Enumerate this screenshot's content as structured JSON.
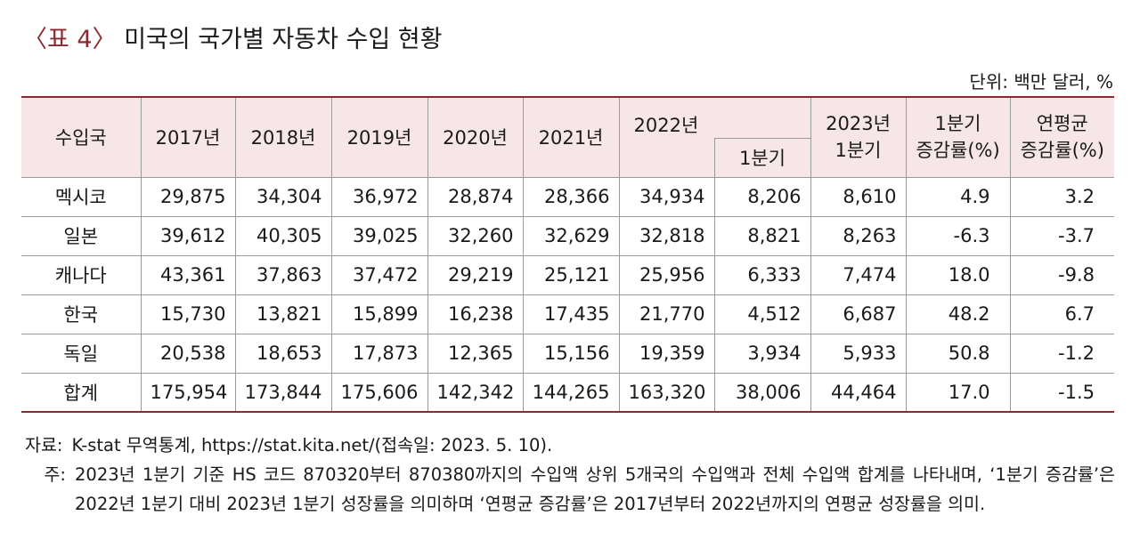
{
  "title": {
    "bracket_label": "〈표 4〉",
    "text": "미국의 국가별 자동차 수입 현황"
  },
  "unit_label": "단위: 백만 달러, %",
  "table": {
    "headers": {
      "country": "수입국",
      "y2017": "2017년",
      "y2018": "2018년",
      "y2019": "2019년",
      "y2020": "2020년",
      "y2021": "2021년",
      "y2022": "2022년",
      "y2022_q1": "1분기",
      "y2023_q1_line1": "2023년",
      "y2023_q1_line2": "1분기",
      "q1_growth_line1": "1분기",
      "q1_growth_line2": "증감률(%)",
      "avg_growth_line1": "연평균",
      "avg_growth_line2": "증감률(%)"
    },
    "rows": [
      {
        "country": "멕시코",
        "v2017": "29,875",
        "v2018": "34,304",
        "v2019": "36,972",
        "v2020": "28,874",
        "v2021": "28,366",
        "v2022": "34,934",
        "q1_2022": "8,206",
        "q1_2023": "8,610",
        "q1_growth": "4.9",
        "avg_growth": "3.2"
      },
      {
        "country": "일본",
        "v2017": "39,612",
        "v2018": "40,305",
        "v2019": "39,025",
        "v2020": "32,260",
        "v2021": "32,629",
        "v2022": "32,818",
        "q1_2022": "8,821",
        "q1_2023": "8,263",
        "q1_growth": "-6.3",
        "avg_growth": "-3.7"
      },
      {
        "country": "캐나다",
        "v2017": "43,361",
        "v2018": "37,863",
        "v2019": "37,472",
        "v2020": "29,219",
        "v2021": "25,121",
        "v2022": "25,956",
        "q1_2022": "6,333",
        "q1_2023": "7,474",
        "q1_growth": "18.0",
        "avg_growth": "-9.8"
      },
      {
        "country": "한국",
        "v2017": "15,730",
        "v2018": "13,821",
        "v2019": "15,899",
        "v2020": "16,238",
        "v2021": "17,435",
        "v2022": "21,770",
        "q1_2022": "4,512",
        "q1_2023": "6,687",
        "q1_growth": "48.2",
        "avg_growth": "6.7"
      },
      {
        "country": "독일",
        "v2017": "20,538",
        "v2018": "18,653",
        "v2019": "17,873",
        "v2020": "12,365",
        "v2021": "15,156",
        "v2022": "19,359",
        "q1_2022": "3,934",
        "q1_2023": "5,933",
        "q1_growth": "50.8",
        "avg_growth": "-1.2"
      },
      {
        "country": "합계",
        "v2017": "175,954",
        "v2018": "173,844",
        "v2019": "175,606",
        "v2020": "142,342",
        "v2021": "144,265",
        "v2022": "163,320",
        "q1_2022": "38,006",
        "q1_2023": "44,464",
        "q1_growth": "17.0",
        "avg_growth": "-1.5"
      }
    ]
  },
  "notes": {
    "source_label": "자료:",
    "source_text": "K-stat 무역통계, https://stat.kita.net/(접속일: 2023. 5. 10).",
    "note_label": "주:",
    "note_text": "2023년 1분기 기준 HS 코드 870320부터 870380까지의 수입액 상위 5개국의 수입액과 전체 수입액 합계를 나타내며, ‘1분기 증감률’은 2022년 1분기 대비 2023년 1분기 성장률을 의미하며 ‘연평균 증감률’은 2017년부터 2022년까지의 연평균 성장률을 의미."
  },
  "colors": {
    "accent": "#8a2a33",
    "header_bg": "#f6e6e8",
    "border": "#9a9a9a"
  }
}
